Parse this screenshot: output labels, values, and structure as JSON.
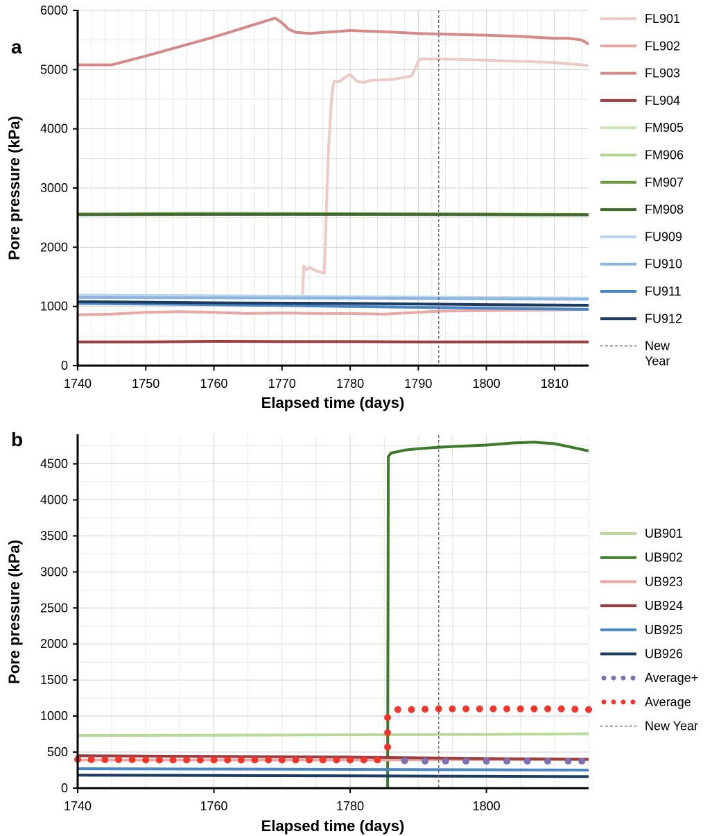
{
  "chart_data": [
    {
      "panel_label": "a",
      "type": "line",
      "xlabel": "Elapsed time (days)",
      "ylabel": "Pore pressure (kPa)",
      "xlim": [
        1740,
        1815
      ],
      "ylim": [
        0,
        6000
      ],
      "xticks": [
        1740,
        1750,
        1760,
        1770,
        1780,
        1790,
        1800,
        1810
      ],
      "yticks": [
        0,
        1000,
        2000,
        3000,
        4000,
        5000,
        6000
      ],
      "grid": true,
      "legend_position": "right",
      "vline": {
        "name": "New Year",
        "legend_label": [
          "New",
          "Year"
        ],
        "x": 1793,
        "color": "#555555"
      },
      "series": [
        {
          "name": "FL901",
          "color": "#efc9c6",
          "points": [
            [
              1773,
              1200
            ],
            [
              1773.2,
              1680
            ],
            [
              1773.6,
              1620
            ],
            [
              1774,
              1660
            ],
            [
              1775,
              1600
            ],
            [
              1776.2,
              1560
            ],
            [
              1776.8,
              3600
            ],
            [
              1777.3,
              4550
            ],
            [
              1777.6,
              4800
            ],
            [
              1778.5,
              4800
            ],
            [
              1779,
              4850
            ],
            [
              1780,
              4920
            ],
            [
              1781,
              4800
            ],
            [
              1782,
              4780
            ],
            [
              1783,
              4820
            ],
            [
              1786,
              4830
            ],
            [
              1789,
              4890
            ],
            [
              1790.2,
              5180
            ],
            [
              1793,
              5180
            ],
            [
              1800,
              5160
            ],
            [
              1810,
              5120
            ],
            [
              1815,
              5070
            ]
          ]
        },
        {
          "name": "FL902",
          "color": "#e8a8a6",
          "points": [
            [
              1740,
              860
            ],
            [
              1745,
              870
            ],
            [
              1750,
              900
            ],
            [
              1755,
              910
            ],
            [
              1760,
              900
            ],
            [
              1765,
              880
            ],
            [
              1770,
              890
            ],
            [
              1775,
              880
            ],
            [
              1780,
              880
            ],
            [
              1785,
              870
            ],
            [
              1790,
              900
            ],
            [
              1793,
              920
            ],
            [
              1800,
              930
            ],
            [
              1810,
              940
            ],
            [
              1815,
              950
            ]
          ]
        },
        {
          "name": "FL903",
          "color": "#d58a88",
          "points": [
            [
              1740,
              5080
            ],
            [
              1745,
              5080
            ],
            [
              1750,
              5230
            ],
            [
              1760,
              5550
            ],
            [
              1769,
              5870
            ],
            [
              1770,
              5790
            ],
            [
              1771,
              5680
            ],
            [
              1772,
              5630
            ],
            [
              1774,
              5610
            ],
            [
              1780,
              5660
            ],
            [
              1785,
              5640
            ],
            [
              1790,
              5610
            ],
            [
              1793,
              5600
            ],
            [
              1800,
              5580
            ],
            [
              1805,
              5560
            ],
            [
              1810,
              5530
            ],
            [
              1812,
              5530
            ],
            [
              1814,
              5500
            ],
            [
              1815,
              5430
            ]
          ]
        },
        {
          "name": "FL904",
          "color": "#9c3c3e",
          "points": [
            [
              1740,
              400
            ],
            [
              1750,
              400
            ],
            [
              1760,
              410
            ],
            [
              1770,
              405
            ],
            [
              1780,
              405
            ],
            [
              1790,
              400
            ],
            [
              1800,
              400
            ],
            [
              1815,
              400
            ]
          ]
        },
        {
          "name": "FM905",
          "color": "#cde4b3",
          "points": []
        },
        {
          "name": "FM906",
          "color": "#b5d693",
          "points": []
        },
        {
          "name": "FM907",
          "color": "#6d9b3f",
          "points": [
            [
              1740,
              2560
            ],
            [
              1760,
              2570
            ],
            [
              1780,
              2565
            ],
            [
              1800,
              2560
            ],
            [
              1815,
              2555
            ]
          ]
        },
        {
          "name": "FM908",
          "color": "#3e6b2b",
          "points": [
            [
              1740,
              2550
            ],
            [
              1760,
              2555
            ],
            [
              1780,
              2555
            ],
            [
              1800,
              2550
            ],
            [
              1815,
              2545
            ]
          ]
        },
        {
          "name": "FU909",
          "color": "#bcd5ee",
          "points": [
            [
              1740,
              1190
            ],
            [
              1760,
              1180
            ],
            [
              1780,
              1165
            ],
            [
              1800,
              1150
            ],
            [
              1815,
              1140
            ]
          ]
        },
        {
          "name": "FU910",
          "color": "#8ab4e1",
          "points": [
            [
              1740,
              1150
            ],
            [
              1760,
              1145
            ],
            [
              1780,
              1140
            ],
            [
              1800,
              1130
            ],
            [
              1815,
              1120
            ]
          ]
        },
        {
          "name": "FU911",
          "color": "#4a86c4",
          "points": [
            [
              1740,
              1050
            ],
            [
              1760,
              1030
            ],
            [
              1780,
              1000
            ],
            [
              1800,
              970
            ],
            [
              1815,
              950
            ]
          ]
        },
        {
          "name": "FU912",
          "color": "#1c3b62",
          "points": [
            [
              1740,
              1080
            ],
            [
              1760,
              1060
            ],
            [
              1780,
              1050
            ],
            [
              1800,
              1030
            ],
            [
              1815,
              1020
            ]
          ]
        }
      ]
    },
    {
      "panel_label": "b",
      "type": "line",
      "xlabel": "Elapsed time (days)",
      "ylabel": "Pore pressure (kPa)",
      "xlim": [
        1740,
        1815
      ],
      "ylim": [
        0,
        4900
      ],
      "xticks": [
        1740,
        1760,
        1780,
        1800
      ],
      "yticks": [
        0,
        500,
        1000,
        1500,
        2000,
        2500,
        3000,
        3500,
        4000,
        4500
      ],
      "grid": true,
      "legend_position": "right",
      "vline": {
        "name": "New Year",
        "legend_label": [
          "New Year"
        ],
        "x": 1793,
        "color": "#555555"
      },
      "series": [
        {
          "name": "UB901",
          "color": "#b7d99a",
          "style": "line",
          "points": [
            [
              1740,
              730
            ],
            [
              1760,
              735
            ],
            [
              1780,
              740
            ],
            [
              1800,
              745
            ],
            [
              1815,
              755
            ]
          ]
        },
        {
          "name": "UB902",
          "color": "#3e7a2c",
          "style": "line",
          "points": [
            [
              1785.5,
              0
            ],
            [
              1785.6,
              4600
            ],
            [
              1786,
              4650
            ],
            [
              1788,
              4690
            ],
            [
              1790,
              4710
            ],
            [
              1793,
              4730
            ],
            [
              1795,
              4740
            ],
            [
              1800,
              4760
            ],
            [
              1804,
              4790
            ],
            [
              1807,
              4800
            ],
            [
              1810,
              4780
            ],
            [
              1813,
              4720
            ],
            [
              1815,
              4680
            ]
          ]
        },
        {
          "name": "UB923",
          "color": "#e8a8a6",
          "style": "line",
          "points": [
            [
              1740,
              390
            ],
            [
              1760,
              390
            ],
            [
              1780,
              390
            ],
            [
              1800,
              395
            ],
            [
              1815,
              395
            ]
          ]
        },
        {
          "name": "UB924",
          "color": "#9c3c3e",
          "style": "line",
          "points": [
            [
              1740,
              450
            ],
            [
              1760,
              440
            ],
            [
              1780,
              430
            ],
            [
              1800,
              410
            ],
            [
              1815,
              400
            ]
          ]
        },
        {
          "name": "UB925",
          "color": "#4a86c4",
          "style": "line",
          "points": [
            [
              1740,
              270
            ],
            [
              1760,
              265
            ],
            [
              1780,
              260
            ],
            [
              1800,
              255
            ],
            [
              1815,
              250
            ]
          ]
        },
        {
          "name": "UB926",
          "color": "#1c3b62",
          "style": "line",
          "points": [
            [
              1740,
              180
            ],
            [
              1760,
              175
            ],
            [
              1780,
              170
            ],
            [
              1800,
              165
            ],
            [
              1815,
              160
            ]
          ]
        },
        {
          "name": "Average+",
          "color": "#7f6fb3",
          "style": "dots",
          "points": [
            [
              1788,
              380
            ],
            [
              1791,
              375
            ],
            [
              1794,
              375
            ],
            [
              1797,
              375
            ],
            [
              1800,
              375
            ],
            [
              1803,
              375
            ],
            [
              1806,
              375
            ],
            [
              1809,
              375
            ],
            [
              1812,
              375
            ],
            [
              1814,
              375
            ]
          ]
        },
        {
          "name": "Average",
          "color": "#f2362b",
          "style": "dots",
          "points": [
            [
              1740,
              400
            ],
            [
              1742,
              395
            ],
            [
              1744,
              395
            ],
            [
              1746,
              395
            ],
            [
              1748,
              395
            ],
            [
              1750,
              390
            ],
            [
              1752,
              390
            ],
            [
              1754,
              390
            ],
            [
              1756,
              390
            ],
            [
              1758,
              390
            ],
            [
              1760,
              390
            ],
            [
              1762,
              390
            ],
            [
              1764,
              390
            ],
            [
              1766,
              390
            ],
            [
              1768,
              390
            ],
            [
              1770,
              390
            ],
            [
              1772,
              390
            ],
            [
              1774,
              390
            ],
            [
              1776,
              390
            ],
            [
              1778,
              390
            ],
            [
              1780,
              390
            ],
            [
              1782,
              390
            ],
            [
              1784,
              390
            ],
            [
              1785.5,
              570
            ],
            [
              1785.5,
              770
            ],
            [
              1785.5,
              980
            ],
            [
              1787,
              1090
            ],
            [
              1789,
              1090
            ],
            [
              1791,
              1095
            ],
            [
              1793,
              1100
            ],
            [
              1795,
              1100
            ],
            [
              1797,
              1100
            ],
            [
              1799,
              1100
            ],
            [
              1801,
              1100
            ],
            [
              1803,
              1100
            ],
            [
              1805,
              1100
            ],
            [
              1807,
              1100
            ],
            [
              1809,
              1100
            ],
            [
              1811,
              1100
            ],
            [
              1813,
              1095
            ],
            [
              1815,
              1090
            ]
          ]
        }
      ]
    }
  ]
}
